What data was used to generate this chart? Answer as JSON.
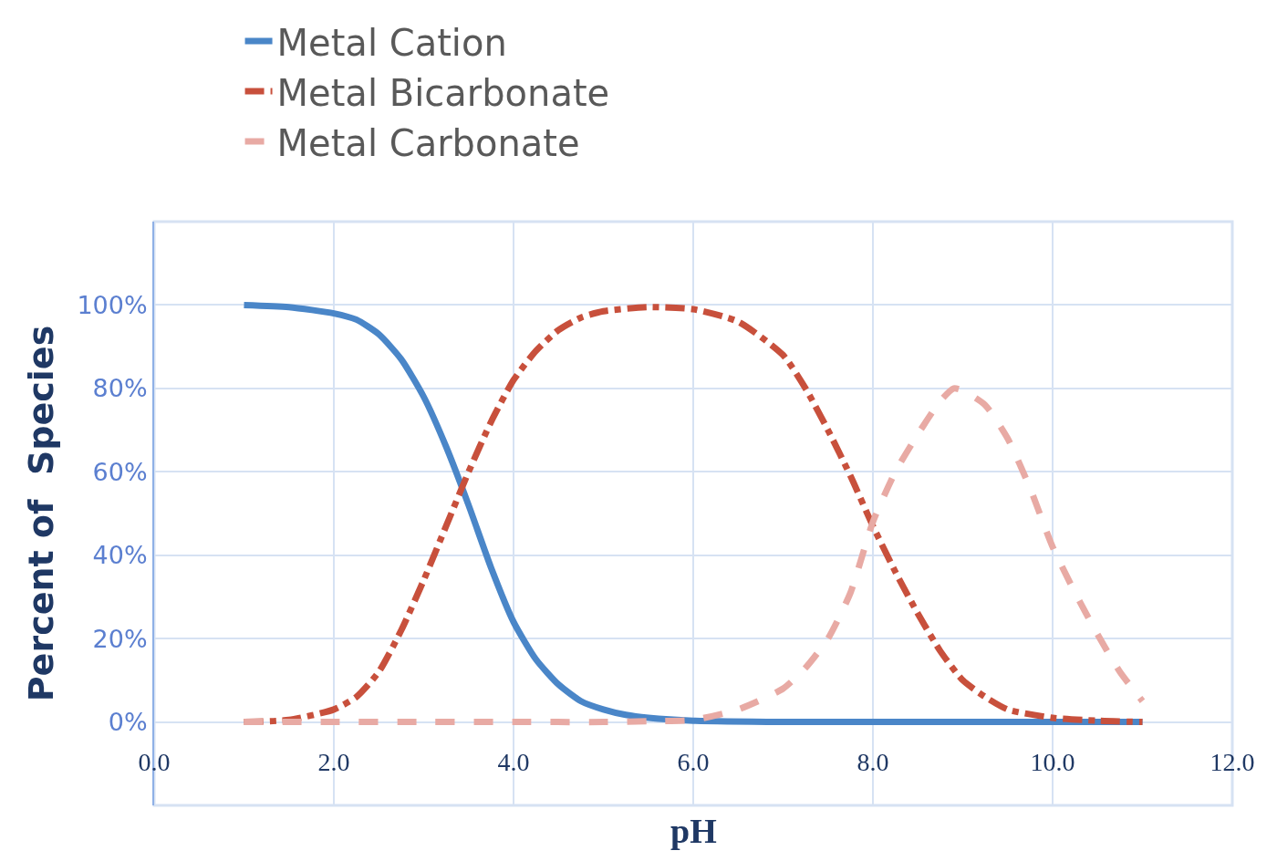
{
  "chart_data": {
    "type": "line",
    "xlabel": "pH",
    "ylabel": "Percent of  Species",
    "xlim": [
      0,
      12
    ],
    "ylim": [
      -20,
      120
    ],
    "xticks": [
      {
        "value": 0,
        "label": "0.0"
      },
      {
        "value": 2,
        "label": "2.0"
      },
      {
        "value": 4,
        "label": "4.0"
      },
      {
        "value": 6,
        "label": "6.0"
      },
      {
        "value": 8,
        "label": "8.0"
      },
      {
        "value": 10,
        "label": "10.0"
      },
      {
        "value": 12,
        "label": "12.0"
      }
    ],
    "yticks": [
      {
        "value": 0,
        "label": "0%"
      },
      {
        "value": 20,
        "label": "20%"
      },
      {
        "value": 40,
        "label": "40%"
      },
      {
        "value": 60,
        "label": "60%"
      },
      {
        "value": 80,
        "label": "80%"
      },
      {
        "value": 100,
        "label": "100%"
      }
    ],
    "grid": true,
    "legend": "top left",
    "marker": "none",
    "series": [
      {
        "name": "Metal Cation",
        "color": "#4a86c8",
        "line_style": "solid",
        "x": [
          1,
          1.5,
          2,
          2.25,
          2.5,
          2.75,
          3,
          3.25,
          3.5,
          3.75,
          4,
          4.25,
          4.5,
          4.75,
          5,
          5.25,
          5.5,
          6,
          7,
          8,
          9,
          10,
          11
        ],
        "values": [
          100,
          99.5,
          98,
          96.5,
          93,
          87,
          78,
          66,
          52,
          37,
          24,
          15,
          9,
          5,
          3,
          1.7,
          1,
          0.3,
          0,
          0,
          0,
          0,
          0
        ]
      },
      {
        "name": "Metal Bicarbonate",
        "color": "#c8503c",
        "line_style": "dashdot",
        "x": [
          1,
          1.5,
          2,
          2.25,
          2.5,
          2.75,
          3,
          3.25,
          3.5,
          3.75,
          4,
          4.25,
          4.5,
          4.75,
          5,
          5.5,
          6,
          6.5,
          7,
          7.25,
          7.5,
          7.75,
          8,
          8.25,
          8.5,
          8.75,
          9,
          9.25,
          9.5,
          10,
          10.5,
          11
        ],
        "values": [
          0,
          0.5,
          3,
          6,
          12,
          22,
          34,
          47,
          60,
          72,
          82,
          89,
          94,
          97,
          98.5,
          99.5,
          99,
          96,
          88,
          80,
          70,
          59,
          47,
          36,
          26,
          17,
          10,
          6,
          3,
          1,
          0.3,
          0
        ]
      },
      {
        "name": "Metal Carbonate",
        "color": "#e8aaa4",
        "line_style": "dashed",
        "x": [
          1,
          2,
          3,
          4,
          5,
          5.5,
          6,
          6.5,
          7,
          7.25,
          7.5,
          7.75,
          8,
          8.25,
          8.5,
          8.75,
          8.9,
          9,
          9.25,
          9.5,
          9.75,
          10,
          10.25,
          10.5,
          10.75,
          11
        ],
        "values": [
          0,
          0,
          0,
          0,
          0,
          0.2,
          0.5,
          3,
          8,
          13,
          20,
          31,
          48,
          60,
          69,
          77,
          80,
          79.5,
          76,
          68,
          56,
          42,
          31,
          21,
          12,
          5
        ]
      }
    ]
  }
}
